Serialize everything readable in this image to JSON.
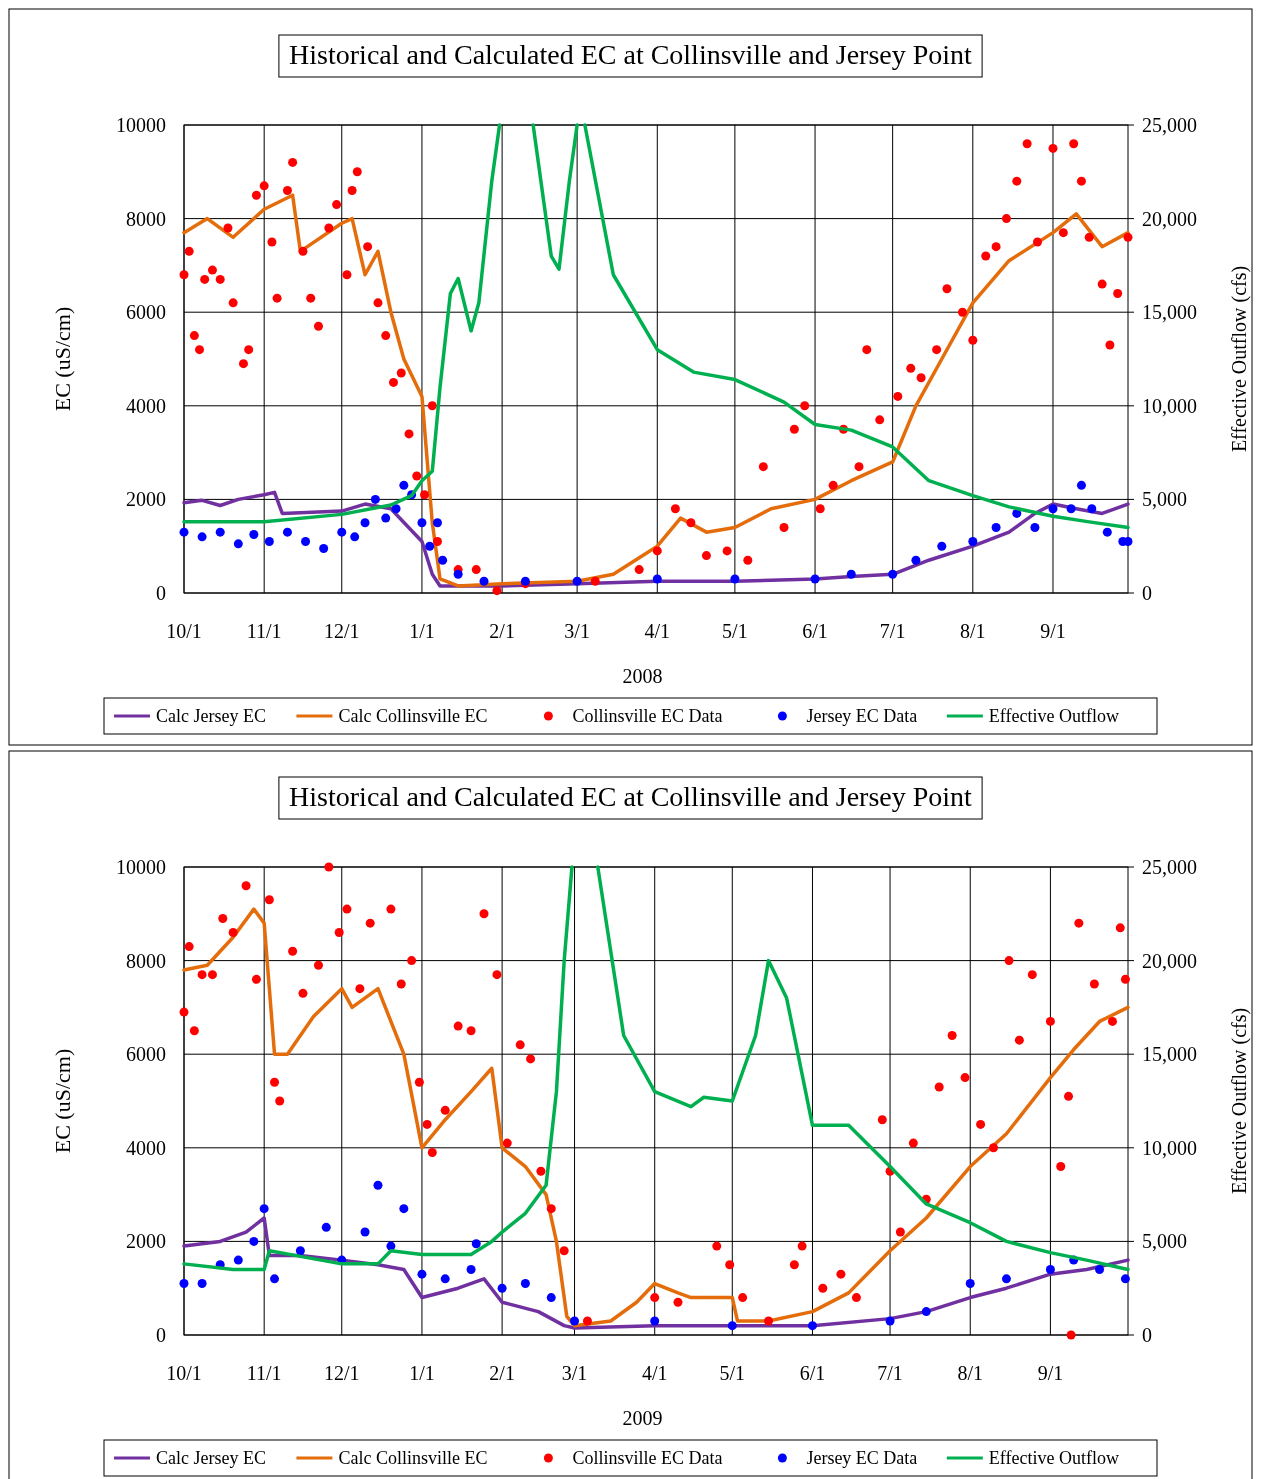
{
  "chart_data": [
    {
      "type": "line",
      "title": "Historical and Calculated EC at Collinsville and Jersey Point",
      "xlabel": "2008",
      "ylabel": "EC (uS/cm)",
      "y2label": "Effective Outflow (cfs)",
      "xlim": [
        "2007-10-01",
        "2008-09-30"
      ],
      "xticks": [
        {
          "value": "2007-10-01",
          "label": "10/1"
        },
        {
          "value": "2007-11-01",
          "label": "11/1"
        },
        {
          "value": "2007-12-01",
          "label": "12/1"
        },
        {
          "value": "2008-01-01",
          "label": "1/1"
        },
        {
          "value": "2008-02-01",
          "label": "2/1"
        },
        {
          "value": "2008-03-01",
          "label": "3/1"
        },
        {
          "value": "2008-04-01",
          "label": "4/1"
        },
        {
          "value": "2008-05-01",
          "label": "5/1"
        },
        {
          "value": "2008-06-01",
          "label": "6/1"
        },
        {
          "value": "2008-07-01",
          "label": "7/1"
        },
        {
          "value": "2008-08-01",
          "label": "8/1"
        },
        {
          "value": "2008-09-01",
          "label": "9/1"
        }
      ],
      "ylim": [
        0,
        10000
      ],
      "yticks": [
        0,
        2000,
        4000,
        6000,
        8000,
        10000
      ],
      "y2lim": [
        0,
        25000
      ],
      "y2ticks": [
        0,
        {
          "value": 5000,
          "label": "5,000"
        },
        {
          "value": 10000,
          "label": "10,000"
        },
        {
          "value": 15000,
          "label": "15,000"
        },
        {
          "value": 20000,
          "label": "20,000"
        },
        {
          "value": 25000,
          "label": "25,000"
        }
      ],
      "grid": true,
      "legend": "bottom",
      "series": [
        {
          "name": "Calc Jersey EC",
          "color": "#7030a0",
          "type": "line",
          "x": [
            "2007-10-01",
            "2007-10-08",
            "2007-10-15",
            "2007-10-22",
            "2007-11-01",
            "2007-11-05",
            "2007-11-08",
            "2007-12-01",
            "2007-12-10",
            "2007-12-20",
            "2008-01-01",
            "2008-01-05",
            "2008-01-08",
            "2008-02-01",
            "2008-03-01",
            "2008-04-01",
            "2008-05-01",
            "2008-06-01",
            "2008-06-15",
            "2008-07-01",
            "2008-07-15",
            "2008-08-01",
            "2008-08-15",
            "2008-08-25",
            "2008-09-01",
            "2008-09-10",
            "2008-09-20",
            "2008-09-30"
          ],
          "values": [
            1930,
            1980,
            1870,
            2000,
            2100,
            2150,
            1700,
            1750,
            1900,
            1800,
            1100,
            400,
            150,
            150,
            200,
            250,
            250,
            300,
            350,
            400,
            700,
            1000,
            1300,
            1700,
            1900,
            1800,
            1700,
            1900
          ]
        },
        {
          "name": "Calc Collinsville EC",
          "color": "#e46c0a",
          "type": "line",
          "x": [
            "2007-10-01",
            "2007-10-10",
            "2007-10-20",
            "2007-11-01",
            "2007-11-12",
            "2007-11-15",
            "2007-12-01",
            "2007-12-05",
            "2007-12-10",
            "2007-12-15",
            "2007-12-20",
            "2007-12-25",
            "2008-01-01",
            "2008-01-05",
            "2008-01-08",
            "2008-01-15",
            "2008-02-01",
            "2008-03-01",
            "2008-03-15",
            "2008-04-01",
            "2008-04-10",
            "2008-04-20",
            "2008-05-01",
            "2008-05-15",
            "2008-06-01",
            "2008-06-15",
            "2008-07-01",
            "2008-07-10",
            "2008-07-20",
            "2008-08-01",
            "2008-08-15",
            "2008-09-01",
            "2008-09-10",
            "2008-09-20",
            "2008-09-30"
          ],
          "values": [
            7700,
            8000,
            7600,
            8200,
            8500,
            7300,
            7900,
            8000,
            6800,
            7300,
            6000,
            5000,
            4200,
            1500,
            300,
            150,
            200,
            250,
            400,
            1000,
            1600,
            1300,
            1400,
            1800,
            2000,
            2400,
            2800,
            4000,
            5000,
            6200,
            7100,
            7700,
            8100,
            7400,
            7700
          ]
        },
        {
          "name": "Collinsville EC Data",
          "color": "#ff0000",
          "type": "scatter",
          "marker": "circle",
          "x": [
            "2007-10-01",
            "2007-10-03",
            "2007-10-05",
            "2007-10-07",
            "2007-10-09",
            "2007-10-12",
            "2007-10-15",
            "2007-10-18",
            "2007-10-20",
            "2007-10-24",
            "2007-10-26",
            "2007-10-29",
            "2007-11-01",
            "2007-11-04",
            "2007-11-06",
            "2007-11-10",
            "2007-11-12",
            "2007-11-16",
            "2007-11-19",
            "2007-11-22",
            "2007-11-26",
            "2007-11-29",
            "2007-12-03",
            "2007-12-05",
            "2007-12-07",
            "2007-12-11",
            "2007-12-15",
            "2007-12-18",
            "2007-12-21",
            "2007-12-24",
            "2007-12-27",
            "2007-12-30",
            "2008-01-02",
            "2008-01-05",
            "2008-01-07",
            "2008-01-15",
            "2008-01-22",
            "2008-01-30",
            "2008-02-10",
            "2008-03-08",
            "2008-03-25",
            "2008-04-01",
            "2008-04-08",
            "2008-04-14",
            "2008-04-20",
            "2008-04-28",
            "2008-05-06",
            "2008-05-12",
            "2008-05-20",
            "2008-05-24",
            "2008-05-28",
            "2008-06-03",
            "2008-06-08",
            "2008-06-12",
            "2008-06-18",
            "2008-06-21",
            "2008-06-26",
            "2008-07-03",
            "2008-07-08",
            "2008-07-12",
            "2008-07-18",
            "2008-07-22",
            "2008-07-28",
            "2008-08-01",
            "2008-08-06",
            "2008-08-10",
            "2008-08-14",
            "2008-08-18",
            "2008-08-22",
            "2008-08-26",
            "2008-09-01",
            "2008-09-05",
            "2008-09-09",
            "2008-09-12",
            "2008-09-15",
            "2008-09-20",
            "2008-09-23",
            "2008-09-26",
            "2008-09-30"
          ],
          "values": [
            6800,
            7300,
            5500,
            5200,
            6700,
            6900,
            6700,
            7800,
            6200,
            4900,
            5200,
            8500,
            8700,
            7500,
            6300,
            8600,
            9200,
            7300,
            6300,
            5700,
            7800,
            8300,
            6800,
            8600,
            9000,
            7400,
            6200,
            5500,
            4500,
            4700,
            3400,
            2500,
            2100,
            4000,
            1100,
            500,
            500,
            50,
            200,
            250,
            500,
            900,
            1800,
            1500,
            800,
            900,
            700,
            2700,
            1400,
            3500,
            4000,
            1800,
            2300,
            3500,
            2700,
            5200,
            3700,
            4200,
            4800,
            4600,
            5200,
            6500,
            6000,
            5400,
            7200,
            7400,
            8000,
            8800,
            9600,
            7500,
            9500,
            7700,
            9600,
            8800,
            7600,
            6600,
            5300,
            6400,
            7600
          ]
        },
        {
          "name": "Jersey EC Data",
          "color": "#0000ff",
          "type": "scatter",
          "marker": "circle",
          "x": [
            "2007-10-01",
            "2007-10-08",
            "2007-10-15",
            "2007-10-22",
            "2007-10-28",
            "2007-11-03",
            "2007-11-10",
            "2007-11-17",
            "2007-11-24",
            "2007-12-01",
            "2007-12-06",
            "2007-12-10",
            "2007-12-14",
            "2007-12-18",
            "2007-12-22",
            "2007-12-25",
            "2007-12-28",
            "2008-01-01",
            "2008-01-04",
            "2008-01-07",
            "2008-01-09",
            "2008-01-15",
            "2008-01-25",
            "2008-02-10",
            "2008-03-01",
            "2008-04-01",
            "2008-05-01",
            "2008-06-01",
            "2008-06-15",
            "2008-07-01",
            "2008-07-10",
            "2008-07-20",
            "2008-08-01",
            "2008-08-10",
            "2008-08-18",
            "2008-08-25",
            "2008-09-01",
            "2008-09-08",
            "2008-09-12",
            "2008-09-16",
            "2008-09-22",
            "2008-09-28",
            "2008-09-30"
          ],
          "values": [
            1300,
            1200,
            1300,
            1050,
            1250,
            1100,
            1300,
            1100,
            950,
            1300,
            1200,
            1500,
            2000,
            1600,
            1800,
            2300,
            2100,
            1500,
            1000,
            1500,
            700,
            400,
            250,
            250,
            250,
            300,
            300,
            300,
            400,
            400,
            700,
            1000,
            1100,
            1400,
            1700,
            1400,
            1800,
            1800,
            2300,
            1800,
            1300,
            1100,
            1100
          ]
        },
        {
          "name": "Effective Outflow",
          "color": "#00b050",
          "type": "line",
          "axis": "y2",
          "x": [
            "2007-10-01",
            "2007-11-01",
            "2007-12-01",
            "2007-12-20",
            "2007-12-28",
            "2008-01-01",
            "2008-01-05",
            "2008-01-08",
            "2008-01-12",
            "2008-01-15",
            "2008-01-20",
            "2008-01-23",
            "2008-01-28",
            "2008-01-31",
            "2008-02-06",
            "2008-02-13",
            "2008-02-20",
            "2008-02-23",
            "2008-02-27",
            "2008-03-01",
            "2008-03-03",
            "2008-03-04",
            "2008-03-15",
            "2008-04-01",
            "2008-04-15",
            "2008-05-01",
            "2008-05-20",
            "2008-06-01",
            "2008-06-15",
            "2008-07-01",
            "2008-07-15",
            "2008-08-01",
            "2008-08-15",
            "2008-09-01",
            "2008-09-15",
            "2008-09-30"
          ],
          "values": [
            3800,
            3800,
            4200,
            4700,
            5200,
            6000,
            6500,
            11000,
            16000,
            16800,
            14000,
            15500,
            22000,
            25000,
            null,
            25000,
            18000,
            17300,
            22000,
            25000,
            null,
            25000,
            17000,
            13000,
            11800,
            11400,
            10200,
            9000,
            8700,
            7800,
            6000,
            5200,
            4600,
            4100,
            3800,
            3500
          ]
        }
      ]
    },
    {
      "type": "line",
      "title": "Historical and Calculated EC at Collinsville and Jersey Point",
      "xlabel": "2009",
      "ylabel": "EC (uS/cm)",
      "y2label": "Effective Outflow (cfs)",
      "xlim": [
        "2008-10-01",
        "2009-10-01"
      ],
      "xticks": [
        {
          "value": "2008-10-01",
          "label": "10/1"
        },
        {
          "value": "2008-11-01",
          "label": "11/1"
        },
        {
          "value": "2008-12-01",
          "label": "12/1"
        },
        {
          "value": "2009-01-01",
          "label": "1/1"
        },
        {
          "value": "2009-02-01",
          "label": "2/1"
        },
        {
          "value": "2009-03-01",
          "label": "3/1"
        },
        {
          "value": "2009-04-01",
          "label": "4/1"
        },
        {
          "value": "2009-05-01",
          "label": "5/1"
        },
        {
          "value": "2009-06-01",
          "label": "6/1"
        },
        {
          "value": "2009-07-01",
          "label": "7/1"
        },
        {
          "value": "2009-08-01",
          "label": "8/1"
        },
        {
          "value": "2009-09-01",
          "label": "9/1"
        }
      ],
      "ylim": [
        0,
        10000
      ],
      "yticks": [
        0,
        2000,
        4000,
        6000,
        8000,
        10000
      ],
      "y2lim": [
        0,
        25000
      ],
      "y2ticks": [
        0,
        {
          "value": 5000,
          "label": "5,000"
        },
        {
          "value": 10000,
          "label": "10,000"
        },
        {
          "value": 15000,
          "label": "15,000"
        },
        {
          "value": 20000,
          "label": "20,000"
        },
        {
          "value": 25000,
          "label": "25,000"
        }
      ],
      "grid": true,
      "legend": "bottom",
      "series": [
        {
          "name": "Calc Jersey EC",
          "color": "#7030a0",
          "type": "line",
          "x": [
            "2008-10-01",
            "2008-10-15",
            "2008-10-25",
            "2008-11-01",
            "2008-11-03",
            "2008-11-15",
            "2008-12-01",
            "2008-12-15",
            "2008-12-25",
            "2009-01-01",
            "2009-01-15",
            "2009-01-25",
            "2009-02-01",
            "2009-02-15",
            "2009-02-25",
            "2009-03-01",
            "2009-04-01",
            "2009-05-01",
            "2009-06-01",
            "2009-07-01",
            "2009-07-15",
            "2009-08-01",
            "2009-08-15",
            "2009-09-01",
            "2009-09-15",
            "2009-10-01"
          ],
          "values": [
            1900,
            2000,
            2200,
            2500,
            1700,
            1700,
            1600,
            1500,
            1400,
            800,
            1000,
            1200,
            700,
            500,
            200,
            150,
            200,
            200,
            200,
            350,
            500,
            800,
            1000,
            1300,
            1400,
            1600
          ]
        },
        {
          "name": "Calc Collinsville EC",
          "color": "#e46c0a",
          "type": "line",
          "x": [
            "2008-10-01",
            "2008-10-10",
            "2008-10-20",
            "2008-10-28",
            "2008-11-01",
            "2008-11-05",
            "2008-11-10",
            "2008-11-20",
            "2008-12-01",
            "2008-12-05",
            "2008-12-15",
            "2008-12-25",
            "2009-01-01",
            "2009-01-10",
            "2009-01-20",
            "2009-01-28",
            "2009-02-01",
            "2009-02-10",
            "2009-02-18",
            "2009-02-22",
            "2009-02-26",
            "2009-03-01",
            "2009-03-15",
            "2009-03-25",
            "2009-04-01",
            "2009-04-10",
            "2009-04-15",
            "2009-05-01",
            "2009-05-03",
            "2009-05-15",
            "2009-06-01",
            "2009-06-15",
            "2009-07-01",
            "2009-07-15",
            "2009-08-01",
            "2009-08-15",
            "2009-09-01",
            "2009-09-10",
            "2009-09-20",
            "2009-10-01"
          ],
          "values": [
            7800,
            7900,
            8500,
            9100,
            8800,
            6000,
            6000,
            6800,
            7400,
            7000,
            7400,
            6000,
            4000,
            4600,
            5200,
            5700,
            4000,
            3600,
            3000,
            2000,
            400,
            200,
            300,
            700,
            1100,
            900,
            800,
            800,
            300,
            300,
            500,
            900,
            1800,
            2500,
            3600,
            4300,
            5500,
            6100,
            6700,
            7000
          ]
        },
        {
          "name": "Collinsville EC Data",
          "color": "#ff0000",
          "type": "scatter",
          "marker": "circle",
          "x": [
            "2008-10-01",
            "2008-10-03",
            "2008-10-05",
            "2008-10-08",
            "2008-10-12",
            "2008-10-16",
            "2008-10-20",
            "2008-10-25",
            "2008-10-29",
            "2008-11-03",
            "2008-11-05",
            "2008-11-07",
            "2008-11-12",
            "2008-11-16",
            "2008-11-22",
            "2008-11-26",
            "2008-11-30",
            "2008-12-03",
            "2008-12-08",
            "2008-12-12",
            "2008-12-20",
            "2008-12-24",
            "2008-12-28",
            "2008-12-31",
            "2009-01-03",
            "2009-01-05",
            "2009-01-10",
            "2009-01-15",
            "2009-01-20",
            "2009-01-25",
            "2009-01-30",
            "2009-02-03",
            "2009-02-08",
            "2009-02-12",
            "2009-02-16",
            "2009-02-20",
            "2009-02-25",
            "2009-03-06",
            "2009-04-01",
            "2009-04-10",
            "2009-04-25",
            "2009-04-30",
            "2009-05-05",
            "2009-05-15",
            "2009-05-25",
            "2009-05-28",
            "2009-06-05",
            "2009-06-12",
            "2009-06-18",
            "2009-06-28",
            "2009-07-01",
            "2009-07-05",
            "2009-07-10",
            "2009-07-15",
            "2009-07-20",
            "2009-07-25",
            "2009-07-30",
            "2009-08-05",
            "2009-08-10",
            "2009-08-16",
            "2009-08-20",
            "2009-08-25",
            "2009-09-01",
            "2009-09-05",
            "2009-09-08",
            "2009-09-09",
            "2009-09-12",
            "2009-09-18",
            "2009-09-25",
            "2009-09-28",
            "2009-09-30"
          ],
          "values": [
            6900,
            8300,
            6500,
            7700,
            7700,
            8900,
            8600,
            9600,
            7600,
            9300,
            5400,
            5000,
            8200,
            7300,
            7900,
            10000,
            8600,
            9100,
            7400,
            8800,
            9100,
            7500,
            8000,
            5400,
            4500,
            3900,
            4800,
            6600,
            6500,
            9000,
            7700,
            4100,
            6200,
            5900,
            3500,
            2700,
            1800,
            300,
            800,
            700,
            1900,
            1500,
            800,
            300,
            1500,
            1900,
            1000,
            1300,
            800,
            4600,
            3500,
            2200,
            4100,
            2900,
            5300,
            6400,
            5500,
            4500,
            4000,
            8000,
            6300,
            7700,
            6700,
            3600,
            5100,
            0,
            8800,
            7500,
            6700,
            8700,
            7600
          ]
        },
        {
          "name": "Jersey EC Data",
          "color": "#0000ff",
          "type": "scatter",
          "marker": "circle",
          "x": [
            "2008-10-01",
            "2008-10-08",
            "2008-10-15",
            "2008-10-22",
            "2008-10-28",
            "2008-11-01",
            "2008-11-05",
            "2008-11-15",
            "2008-11-25",
            "2008-12-01",
            "2008-12-10",
            "2008-12-15",
            "2008-12-20",
            "2008-12-25",
            "2009-01-01",
            "2009-01-10",
            "2009-01-20",
            "2009-01-22",
            "2009-02-01",
            "2009-02-10",
            "2009-02-20",
            "2009-03-01",
            "2009-04-01",
            "2009-05-01",
            "2009-06-01",
            "2009-07-01",
            "2009-07-15",
            "2009-08-01",
            "2009-08-15",
            "2009-09-01",
            "2009-09-10",
            "2009-09-20",
            "2009-09-30"
          ],
          "values": [
            1100,
            1100,
            1500,
            1600,
            2000,
            2700,
            1200,
            1800,
            2300,
            1600,
            2200,
            3200,
            1900,
            2700,
            1300,
            1200,
            1400,
            1950,
            1000,
            1100,
            800,
            300,
            300,
            200,
            200,
            300,
            500,
            1100,
            1200,
            1400,
            1600,
            1400,
            1200
          ]
        },
        {
          "name": "Effective Outflow",
          "color": "#00b050",
          "type": "line",
          "axis": "y2",
          "x": [
            "2008-10-01",
            "2008-10-20",
            "2008-11-01",
            "2008-11-03",
            "2008-11-15",
            "2008-12-01",
            "2008-12-15",
            "2008-12-20",
            "2009-01-01",
            "2009-01-20",
            "2009-01-28",
            "2009-02-01",
            "2009-02-10",
            "2009-02-18",
            "2009-02-22",
            "2009-02-25",
            "2009-02-28",
            "2009-03-05",
            "2009-03-10",
            "2009-03-20",
            "2009-04-01",
            "2009-04-15",
            "2009-04-20",
            "2009-05-01",
            "2009-05-10",
            "2009-05-15",
            "2009-05-22",
            "2009-06-01",
            "2009-06-15",
            "2009-07-01",
            "2009-07-15",
            "2009-08-01",
            "2009-08-15",
            "2009-09-01",
            "2009-09-15",
            "2009-10-01"
          ],
          "values": [
            3800,
            3500,
            3500,
            4500,
            4200,
            3800,
            3800,
            4500,
            4300,
            4300,
            5000,
            5500,
            6500,
            8000,
            13000,
            20000,
            25000,
            null,
            25000,
            16000,
            13000,
            12200,
            12700,
            12500,
            16000,
            20000,
            18000,
            11200,
            11200,
            9000,
            7000,
            6000,
            5000,
            4400,
            4000,
            3500
          ]
        }
      ]
    }
  ]
}
